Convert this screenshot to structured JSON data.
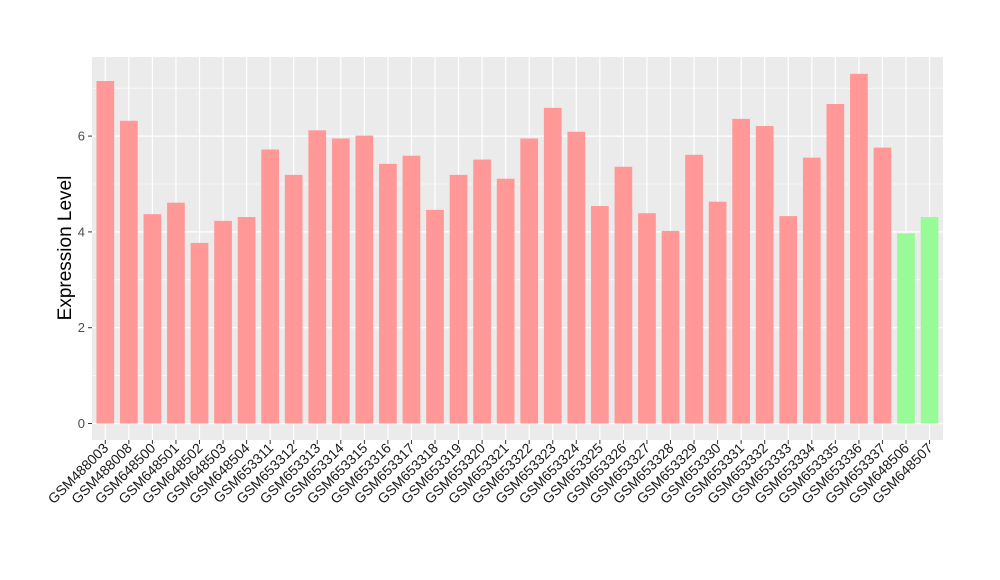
{
  "chart_data": {
    "type": "bar",
    "title": "",
    "xlabel": "",
    "ylabel": "Expression Level",
    "ylim": [
      0,
      7.6
    ],
    "yticks": [
      0,
      2,
      4,
      6
    ],
    "grid": true,
    "legend": "none",
    "colors": {
      "group_a": "#ff9896",
      "group_b": "#98fb98",
      "panel": "#ebebeb",
      "grid": "#ffffff"
    },
    "categories": [
      "GSM488003",
      "GSM488008",
      "GSM648500",
      "GSM648501",
      "GSM648502",
      "GSM648503",
      "GSM648504",
      "GSM653311",
      "GSM653312",
      "GSM653313",
      "GSM653314",
      "GSM653315",
      "GSM653316",
      "GSM653317",
      "GSM653318",
      "GSM653319",
      "GSM653320",
      "GSM653321",
      "GSM653322",
      "GSM653323",
      "GSM653324",
      "GSM653325",
      "GSM653326",
      "GSM653327",
      "GSM653328",
      "GSM653329",
      "GSM653330",
      "GSM653331",
      "GSM653332",
      "GSM653333",
      "GSM653334",
      "GSM653335",
      "GSM653336",
      "GSM653337",
      "GSM648506",
      "GSM648507"
    ],
    "values": [
      7.15,
      6.32,
      4.37,
      4.61,
      3.77,
      4.23,
      4.31,
      5.72,
      5.19,
      6.12,
      5.95,
      6.01,
      5.42,
      5.59,
      4.46,
      5.19,
      5.51,
      5.11,
      5.95,
      6.59,
      6.09,
      4.54,
      5.36,
      4.39,
      4.02,
      5.61,
      4.63,
      6.36,
      6.21,
      4.33,
      5.55,
      6.67,
      7.3,
      5.76,
      3.97,
      4.31
    ],
    "groups": [
      "a",
      "a",
      "a",
      "a",
      "a",
      "a",
      "a",
      "a",
      "a",
      "a",
      "a",
      "a",
      "a",
      "a",
      "a",
      "a",
      "a",
      "a",
      "a",
      "a",
      "a",
      "a",
      "a",
      "a",
      "a",
      "a",
      "a",
      "a",
      "a",
      "a",
      "a",
      "a",
      "a",
      "a",
      "b",
      "b"
    ]
  }
}
